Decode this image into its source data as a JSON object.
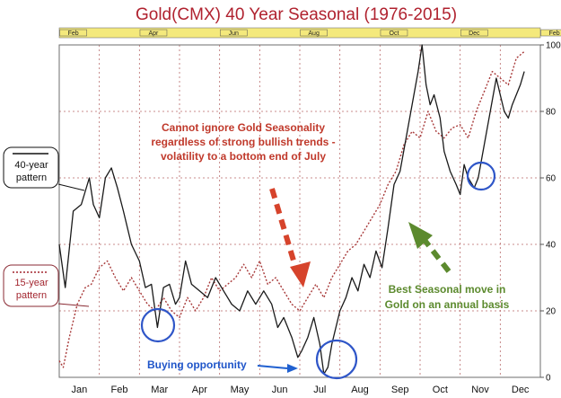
{
  "chart_data": {
    "type": "line",
    "title": "Gold(CMX) 40 Year Seasonal (1976-2015)",
    "x_labels": [
      "Jan",
      "Feb",
      "Mar",
      "Apr",
      "May",
      "Jun",
      "Jul",
      "Aug",
      "Sep",
      "Oct",
      "Nov",
      "Dec"
    ],
    "band_labels": [
      "Feb",
      "Apr",
      "Jun",
      "Aug",
      "Oct",
      "Dec",
      "Feb"
    ],
    "ylim": [
      0,
      100
    ],
    "y_ticks": [
      0,
      20,
      40,
      60,
      80,
      100
    ],
    "grid": true,
    "series": [
      {
        "name": "40-year pattern",
        "color": "#1a1a1a",
        "dash": "solid",
        "points": [
          [
            0,
            40
          ],
          [
            0.15,
            27
          ],
          [
            0.35,
            50
          ],
          [
            0.55,
            52
          ],
          [
            0.75,
            60
          ],
          [
            0.85,
            52
          ],
          [
            1.0,
            48
          ],
          [
            1.15,
            60
          ],
          [
            1.3,
            63
          ],
          [
            1.45,
            57
          ],
          [
            1.6,
            50
          ],
          [
            1.8,
            40
          ],
          [
            2.0,
            35
          ],
          [
            2.15,
            27
          ],
          [
            2.3,
            28
          ],
          [
            2.45,
            15
          ],
          [
            2.6,
            27
          ],
          [
            2.75,
            28
          ],
          [
            2.9,
            22
          ],
          [
            3.0,
            24
          ],
          [
            3.15,
            35
          ],
          [
            3.3,
            28
          ],
          [
            3.5,
            26
          ],
          [
            3.7,
            24
          ],
          [
            3.9,
            30
          ],
          [
            4.1,
            26
          ],
          [
            4.3,
            22
          ],
          [
            4.5,
            20
          ],
          [
            4.7,
            26
          ],
          [
            4.9,
            22
          ],
          [
            5.1,
            26
          ],
          [
            5.3,
            22
          ],
          [
            5.45,
            15
          ],
          [
            5.6,
            18
          ],
          [
            5.8,
            12
          ],
          [
            5.95,
            6
          ],
          [
            6.05,
            8
          ],
          [
            6.2,
            12
          ],
          [
            6.35,
            18
          ],
          [
            6.5,
            10
          ],
          [
            6.6,
            1
          ],
          [
            6.7,
            3
          ],
          [
            6.8,
            10
          ],
          [
            7.0,
            20
          ],
          [
            7.15,
            24
          ],
          [
            7.3,
            30
          ],
          [
            7.45,
            26
          ],
          [
            7.6,
            34
          ],
          [
            7.75,
            30
          ],
          [
            7.9,
            38
          ],
          [
            8.05,
            33
          ],
          [
            8.2,
            45
          ],
          [
            8.35,
            58
          ],
          [
            8.5,
            62
          ],
          [
            8.65,
            72
          ],
          [
            8.8,
            82
          ],
          [
            8.95,
            92
          ],
          [
            9.05,
            100
          ],
          [
            9.15,
            88
          ],
          [
            9.25,
            82
          ],
          [
            9.35,
            85
          ],
          [
            9.5,
            78
          ],
          [
            9.6,
            68
          ],
          [
            9.75,
            62
          ],
          [
            9.9,
            58
          ],
          [
            10.0,
            55
          ],
          [
            10.1,
            64
          ],
          [
            10.2,
            60
          ],
          [
            10.35,
            57
          ],
          [
            10.45,
            60
          ],
          [
            10.6,
            70
          ],
          [
            10.75,
            80
          ],
          [
            10.9,
            90
          ],
          [
            11.0,
            85
          ],
          [
            11.1,
            80
          ],
          [
            11.2,
            78
          ],
          [
            11.3,
            82
          ],
          [
            11.4,
            85
          ],
          [
            11.5,
            88
          ],
          [
            11.6,
            92
          ]
        ]
      },
      {
        "name": "15-year pattern",
        "color": "#a83a3a",
        "dash": "dotted",
        "points": [
          [
            0,
            5
          ],
          [
            0.1,
            3
          ],
          [
            0.25,
            12
          ],
          [
            0.45,
            22
          ],
          [
            0.65,
            27
          ],
          [
            0.8,
            28
          ],
          [
            1.0,
            33
          ],
          [
            1.2,
            35
          ],
          [
            1.4,
            30
          ],
          [
            1.6,
            26
          ],
          [
            1.8,
            30
          ],
          [
            2.0,
            26
          ],
          [
            2.2,
            22
          ],
          [
            2.4,
            20
          ],
          [
            2.6,
            24
          ],
          [
            2.8,
            20
          ],
          [
            3.0,
            18
          ],
          [
            3.2,
            24
          ],
          [
            3.4,
            20
          ],
          [
            3.6,
            24
          ],
          [
            3.8,
            30
          ],
          [
            4.0,
            26
          ],
          [
            4.2,
            28
          ],
          [
            4.4,
            30
          ],
          [
            4.6,
            34
          ],
          [
            4.8,
            30
          ],
          [
            5.0,
            35
          ],
          [
            5.2,
            28
          ],
          [
            5.4,
            30
          ],
          [
            5.6,
            26
          ],
          [
            5.8,
            22
          ],
          [
            6.0,
            20
          ],
          [
            6.2,
            24
          ],
          [
            6.4,
            28
          ],
          [
            6.6,
            24
          ],
          [
            6.8,
            30
          ],
          [
            7.0,
            34
          ],
          [
            7.2,
            38
          ],
          [
            7.4,
            40
          ],
          [
            7.6,
            44
          ],
          [
            7.8,
            48
          ],
          [
            8.0,
            52
          ],
          [
            8.2,
            58
          ],
          [
            8.4,
            62
          ],
          [
            8.6,
            70
          ],
          [
            8.8,
            74
          ],
          [
            9.0,
            72
          ],
          [
            9.2,
            80
          ],
          [
            9.4,
            74
          ],
          [
            9.6,
            72
          ],
          [
            9.8,
            75
          ],
          [
            10.0,
            76
          ],
          [
            10.2,
            72
          ],
          [
            10.4,
            80
          ],
          [
            10.6,
            86
          ],
          [
            10.8,
            92
          ],
          [
            11.0,
            90
          ],
          [
            11.2,
            88
          ],
          [
            11.4,
            96
          ],
          [
            11.6,
            98
          ]
        ]
      }
    ]
  },
  "annotations": {
    "seasonality_note": [
      "Cannot ignore Gold Seasonality",
      "regardless of strong bullish trends -",
      "volatility to a bottom end of July"
    ],
    "best_move": [
      "Best Seasonal move in",
      "Gold on an annual basis"
    ],
    "buying_opportunity": "Buying opportunity",
    "legend_40_line1": "40-year",
    "legend_40_line2": "pattern",
    "legend_15_line1": "15-year",
    "legend_15_line2": "pattern"
  },
  "colors": {
    "title": "#b0222f",
    "grid": "#b86a6a",
    "circle": "#2f56c8",
    "arrow_red": "#d6432b",
    "arrow_green": "#5c8a2e",
    "arrow_blue": "#2060d0",
    "band_fill": "#f4e97c"
  }
}
